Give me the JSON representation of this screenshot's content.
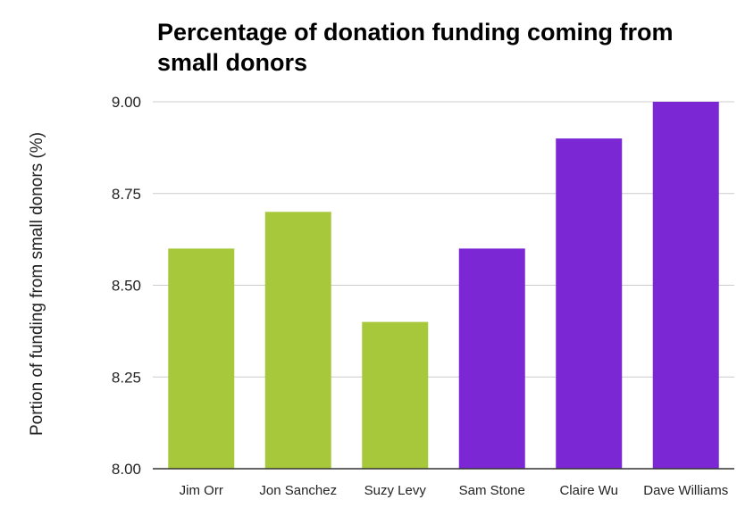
{
  "chart_data": {
    "type": "bar",
    "title_lines": [
      "Percentage of donation funding coming from",
      "small donors"
    ],
    "xlabel": "",
    "ylabel": "Portion of funding from small donors (%)",
    "categories": [
      "Jim Orr",
      "Jon Sanchez",
      "Suzy Levy",
      "Sam Stone",
      "Claire Wu",
      "Dave Williams"
    ],
    "values": [
      8.6,
      8.7,
      8.4,
      8.6,
      8.9,
      9.0
    ],
    "bar_colors": [
      "#a8c83c",
      "#a8c83c",
      "#a8c83c",
      "#7b27d4",
      "#7b27d4",
      "#7b27d4"
    ],
    "ylim": [
      8.0,
      9.0
    ],
    "yticks": [
      "8.00",
      "8.25",
      "8.50",
      "8.75",
      "9.00"
    ],
    "grid": true,
    "legend": "none"
  }
}
